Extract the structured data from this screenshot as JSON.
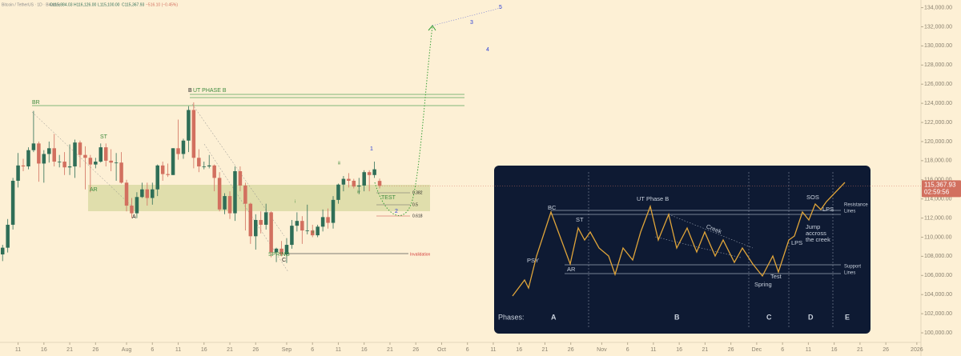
{
  "chart_data": {
    "type": "candlestick",
    "header": [
      "Bitcoin / TetherUS · 1D · Binance",
      "O115,884.03",
      "H116,126.00",
      "L115,100.00",
      "C115,367.93",
      "−516.10 (−0.45%)"
    ],
    "up_color": "#2f6e57",
    "down_color": "#d2705f",
    "ylim": [
      99000,
      134800
    ],
    "yticks": [
      {
        "value": 100000,
        "label": "100,000.00"
      },
      {
        "value": 102000,
        "label": "102,000.00"
      },
      {
        "value": 104000,
        "label": "104,000.00"
      },
      {
        "value": 106000,
        "label": "106,000.00"
      },
      {
        "value": 108000,
        "label": "108,000.00"
      },
      {
        "value": 110000,
        "label": "110,000.00"
      },
      {
        "value": 112000,
        "label": "112,000.00"
      },
      {
        "value": 114000,
        "label": "114,000.00"
      },
      {
        "value": 116000,
        "label": "116,000.00"
      },
      {
        "value": 118000,
        "label": "118,000.00"
      },
      {
        "value": 120000,
        "label": "120,000.00"
      },
      {
        "value": 122000,
        "label": "122,000.00"
      },
      {
        "value": 124000,
        "label": "124,000.00"
      },
      {
        "value": 126000,
        "label": "126,000.00"
      },
      {
        "value": 128000,
        "label": "128,000.00"
      },
      {
        "value": 130000,
        "label": "130,000.00"
      },
      {
        "value": 132000,
        "label": "132,000.00"
      },
      {
        "value": 134000,
        "label": "134,000.00"
      }
    ],
    "xlim": [
      -0.5,
      177.8
    ],
    "xticks": [
      {
        "value": 3,
        "label": "11"
      },
      {
        "value": 8,
        "label": "16"
      },
      {
        "value": 13,
        "label": "21"
      },
      {
        "value": 18,
        "label": "26"
      },
      {
        "value": 24,
        "label": "Aug"
      },
      {
        "value": 29,
        "label": "6"
      },
      {
        "value": 34,
        "label": "11"
      },
      {
        "value": 39,
        "label": "16"
      },
      {
        "value": 44,
        "label": "21"
      },
      {
        "value": 49,
        "label": "26"
      },
      {
        "value": 55,
        "label": "Sep"
      },
      {
        "value": 60,
        "label": "6"
      },
      {
        "value": 65,
        "label": "11"
      },
      {
        "value": 70,
        "label": "16"
      },
      {
        "value": 75,
        "label": "21"
      },
      {
        "value": 80,
        "label": "26"
      },
      {
        "value": 85,
        "label": "Oct"
      },
      {
        "value": 90,
        "label": "6"
      },
      {
        "value": 95,
        "label": "11"
      },
      {
        "value": 100,
        "label": "16"
      },
      {
        "value": 105,
        "label": "21"
      },
      {
        "value": 110,
        "label": "26"
      },
      {
        "value": 116,
        "label": "Nov"
      },
      {
        "value": 121,
        "label": "6"
      },
      {
        "value": 126,
        "label": "11"
      },
      {
        "value": 131,
        "label": "16"
      },
      {
        "value": 136,
        "label": "21"
      },
      {
        "value": 141,
        "label": "26"
      },
      {
        "value": 146,
        "label": "Dec"
      },
      {
        "value": 151,
        "label": "6"
      },
      {
        "value": 156,
        "label": "11"
      },
      {
        "value": 161,
        "label": "16"
      },
      {
        "value": 166,
        "label": "21"
      },
      {
        "value": 171,
        "label": "26"
      },
      {
        "value": 177,
        "label": "2026"
      }
    ],
    "ohlc": [
      [
        108200,
        109200,
        107500,
        108900
      ],
      [
        108900,
        111900,
        108400,
        111300
      ],
      [
        111300,
        116200,
        110800,
        115900
      ],
      [
        115900,
        118800,
        115200,
        117500
      ],
      [
        117500,
        118200,
        116900,
        117400
      ],
      [
        117400,
        119400,
        117100,
        119100
      ],
      [
        119100,
        123200,
        118900,
        119800
      ],
      [
        119800,
        120000,
        115800,
        117700
      ],
      [
        117700,
        119100,
        115700,
        118700
      ],
      [
        118700,
        120000,
        117800,
        119300
      ],
      [
        119300,
        120800,
        117400,
        117900
      ],
      [
        117900,
        118600,
        117300,
        117900
      ],
      [
        117900,
        118900,
        116500,
        117300
      ],
      [
        117300,
        119700,
        116500,
        117400
      ],
      [
        117400,
        120200,
        116200,
        119900
      ],
      [
        119900,
        120100,
        117300,
        118600
      ],
      [
        118600,
        119500,
        115000,
        118300
      ],
      [
        118300,
        118600,
        114700,
        117600
      ],
      [
        117600,
        118300,
        117200,
        117900
      ],
      [
        117900,
        119800,
        117800,
        119400
      ],
      [
        119400,
        119800,
        117400,
        118000
      ],
      [
        118000,
        119200,
        116900,
        117800
      ],
      [
        117800,
        118800,
        115900,
        117800
      ],
      [
        117800,
        118900,
        115600,
        115700
      ],
      [
        115700,
        116000,
        112700,
        113300
      ],
      [
        113300,
        114100,
        112000,
        112500
      ],
      [
        112500,
        114700,
        112000,
        114200
      ],
      [
        114200,
        115700,
        114100,
        115000
      ],
      [
        115000,
        115700,
        113300,
        114100
      ],
      [
        114100,
        115700,
        113400,
        115000
      ],
      [
        115000,
        117600,
        114300,
        117500
      ],
      [
        117500,
        117900,
        115900,
        116600
      ],
      [
        116600,
        117700,
        116300,
        116500
      ],
      [
        116500,
        119300,
        116500,
        119300
      ],
      [
        119300,
        122300,
        118100,
        118700
      ],
      [
        118700,
        120300,
        118200,
        120100
      ],
      [
        120100,
        123700,
        118900,
        123300
      ],
      [
        123300,
        124100,
        117200,
        118300
      ],
      [
        118300,
        119200,
        116800,
        117400
      ],
      [
        117400,
        117900,
        117100,
        117400
      ],
      [
        117400,
        118600,
        117200,
        117500
      ],
      [
        117500,
        117600,
        114800,
        116200
      ],
      [
        116200,
        116800,
        112700,
        112900
      ],
      [
        112900,
        114600,
        112400,
        114300
      ],
      [
        114300,
        114800,
        111900,
        112500
      ],
      [
        112500,
        117400,
        111700,
        116900
      ],
      [
        116900,
        117400,
        114800,
        115400
      ],
      [
        115400,
        115700,
        110700,
        113500
      ],
      [
        113500,
        113600,
        109300,
        110100
      ],
      [
        110100,
        112400,
        108700,
        111800
      ],
      [
        111800,
        112700,
        110400,
        111300
      ],
      [
        111300,
        113500,
        110800,
        112600
      ],
      [
        112600,
        112700,
        107900,
        108400
      ],
      [
        108400,
        108900,
        107400,
        108800
      ],
      [
        108800,
        109600,
        108000,
        108200
      ],
      [
        108200,
        109900,
        107300,
        109200
      ],
      [
        109200,
        111800,
        108800,
        111200
      ],
      [
        111200,
        112600,
        110600,
        111700
      ],
      [
        111700,
        112200,
        109300,
        110700
      ],
      [
        110700,
        113400,
        110300,
        110700
      ],
      [
        110700,
        111300,
        110000,
        110200
      ],
      [
        110200,
        111300,
        110000,
        111100
      ],
      [
        111100,
        112900,
        110600,
        112100
      ],
      [
        112100,
        113000,
        110900,
        111500
      ],
      [
        111500,
        114300,
        110900,
        113900
      ],
      [
        113900,
        115600,
        113500,
        115500
      ],
      [
        115500,
        116400,
        114800,
        116100
      ],
      [
        116100,
        116700,
        115200,
        115900
      ],
      [
        115900,
        116100,
        115100,
        115300
      ],
      [
        115300,
        116200,
        114500,
        115400
      ],
      [
        115400,
        117000,
        114800,
        116800
      ],
      [
        116800,
        117000,
        114800,
        116500
      ],
      [
        116500,
        117900,
        116200,
        117100
      ],
      [
        115884.03,
        116126,
        115100,
        115367.93
      ]
    ],
    "last_price": {
      "value": 115367.93,
      "label": "115,367.93"
    },
    "countdown": "02:59:56",
    "annotations": [
      "BR",
      "ST",
      "AR",
      "A",
      "B",
      "UT PHASE B",
      "SPRING",
      "C",
      "TEST",
      "Invalidation",
      "0.382",
      "0.5",
      "0.618",
      "i",
      "ii",
      "iii",
      "iv",
      "1",
      "2",
      "3",
      "4",
      "5"
    ]
  },
  "inset": {
    "labels": [
      "PSY",
      "BC",
      "AR",
      "ST",
      "UT Phase B",
      "Creek",
      "Spring",
      "Test",
      "LPS",
      "SOS",
      "LPS",
      "Jump",
      "accross",
      "the creek",
      "Resistance",
      "Lines",
      "Support",
      "Lines"
    ],
    "phases": [
      "Phases:",
      "A",
      "B",
      "C",
      "D",
      "E"
    ]
  }
}
